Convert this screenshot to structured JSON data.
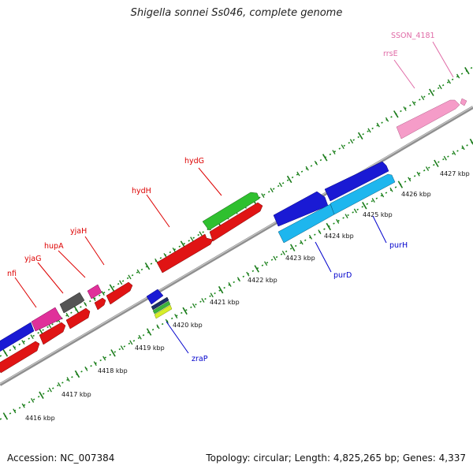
{
  "title": "Shigella sonnei Ss046, complete genome",
  "footer": {
    "accession": "Accession: NC_007384",
    "topology": "Topology: circular; Length: 4,825,265 bp; Genes: 4,337"
  },
  "colors": {
    "upper_label": "#dd0000",
    "lower_label": "#0000cc",
    "pink_label": "#e06aa6"
  },
  "scale_labels": [
    "4416 kbp",
    "4417 kbp",
    "4418 kbp",
    "4419 kbp",
    "4420 kbp",
    "4421 kbp",
    "4422 kbp",
    "4423 kbp",
    "4424 kbp",
    "4425 kbp",
    "4426 kbp",
    "4427 kbp"
  ],
  "upper_labels": [
    "nfi",
    "yjaG",
    "hupA",
    "yjaH",
    "hydH",
    "hydG",
    "rrsE",
    "SSON_4181"
  ],
  "lower_labels": [
    "zraP",
    "purD",
    "purH"
  ]
}
